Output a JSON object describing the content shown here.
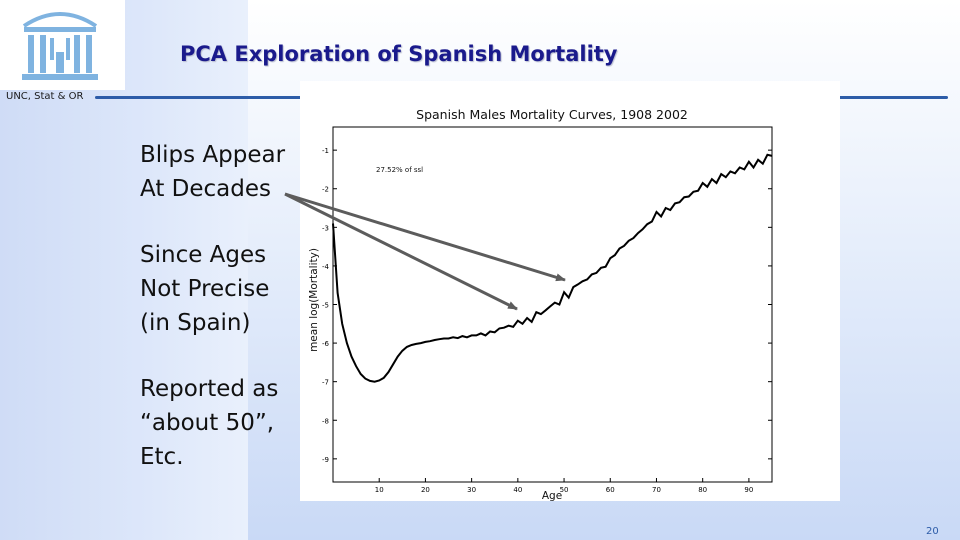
{
  "header": {
    "title": "PCA Exploration of Spanish Mortality",
    "affiliation": "UNC, Stat & OR"
  },
  "bullets": {
    "b1": [
      "Blips Appear",
      "At Decades"
    ],
    "b2": [
      "Since Ages",
      "Not Precise",
      "(in Spain)"
    ],
    "b3": [
      "Reported as",
      "“about 50”,",
      "Etc."
    ]
  },
  "footer": {
    "page": "20"
  },
  "colors": {
    "title": "#1a1a8c",
    "rule": "#2d5ca8",
    "arrow": "#5c5c5c",
    "curve": "#000000"
  },
  "chart_data": {
    "type": "line",
    "title": "Spanish Males Mortality Curves, 1908 2002",
    "xlabel": "Age",
    "ylabel": "mean log(Mortality)",
    "annotation": "27.52% of ssl",
    "xlim": [
      0,
      95
    ],
    "ylim": [
      -9.6,
      -0.4
    ],
    "xticks": [
      10,
      20,
      30,
      40,
      50,
      60,
      70,
      80,
      90
    ],
    "xtick_labels": [
      "10",
      "20",
      "30",
      "40",
      "50",
      "60",
      "70",
      "80",
      "90"
    ],
    "yticks": [
      -1,
      -2,
      -3,
      -4,
      -5,
      -6,
      -7,
      -8,
      -9
    ],
    "ytick_labels": [
      "-1",
      "-2",
      "-3",
      "-4",
      "-5",
      "-6",
      "-7",
      "-8",
      "-9"
    ],
    "series": [
      {
        "name": "mean log(Mortality)",
        "x": [
          0,
          1,
          2,
          3,
          4,
          5,
          6,
          7,
          8,
          9,
          10,
          11,
          12,
          13,
          14,
          15,
          16,
          17,
          18,
          19,
          20,
          21,
          22,
          23,
          24,
          25,
          26,
          27,
          28,
          29,
          30,
          31,
          32,
          33,
          34,
          35,
          36,
          37,
          38,
          39,
          40,
          41,
          42,
          43,
          44,
          45,
          46,
          47,
          48,
          49,
          50,
          51,
          52,
          53,
          54,
          55,
          56,
          57,
          58,
          59,
          60,
          61,
          62,
          63,
          64,
          65,
          66,
          67,
          68,
          69,
          70,
          71,
          72,
          73,
          74,
          75,
          76,
          77,
          78,
          79,
          80,
          81,
          82,
          83,
          84,
          85,
          86,
          87,
          88,
          89,
          90,
          91,
          92,
          93,
          94,
          95
        ],
        "y": [
          -2.9,
          -4.7,
          -5.5,
          -6.0,
          -6.35,
          -6.6,
          -6.8,
          -6.92,
          -6.98,
          -7.0,
          -6.97,
          -6.9,
          -6.75,
          -6.55,
          -6.35,
          -6.2,
          -6.1,
          -6.05,
          -6.02,
          -6.0,
          -5.97,
          -5.95,
          -5.92,
          -5.9,
          -5.88,
          -5.88,
          -5.85,
          -5.87,
          -5.82,
          -5.85,
          -5.8,
          -5.8,
          -5.75,
          -5.8,
          -5.7,
          -5.72,
          -5.62,
          -5.6,
          -5.55,
          -5.58,
          -5.42,
          -5.5,
          -5.35,
          -5.45,
          -5.2,
          -5.25,
          -5.15,
          -5.05,
          -4.95,
          -5.0,
          -4.68,
          -4.82,
          -4.55,
          -4.48,
          -4.4,
          -4.35,
          -4.22,
          -4.18,
          -4.05,
          -4.02,
          -3.8,
          -3.72,
          -3.55,
          -3.48,
          -3.35,
          -3.28,
          -3.15,
          -3.05,
          -2.92,
          -2.85,
          -2.6,
          -2.72,
          -2.5,
          -2.55,
          -2.38,
          -2.35,
          -2.22,
          -2.2,
          -2.08,
          -2.05,
          -1.85,
          -1.95,
          -1.75,
          -1.85,
          -1.62,
          -1.7,
          -1.55,
          -1.6,
          -1.45,
          -1.5,
          -1.3,
          -1.45,
          -1.25,
          -1.35,
          -1.12,
          -1.15
        ]
      }
    ]
  }
}
